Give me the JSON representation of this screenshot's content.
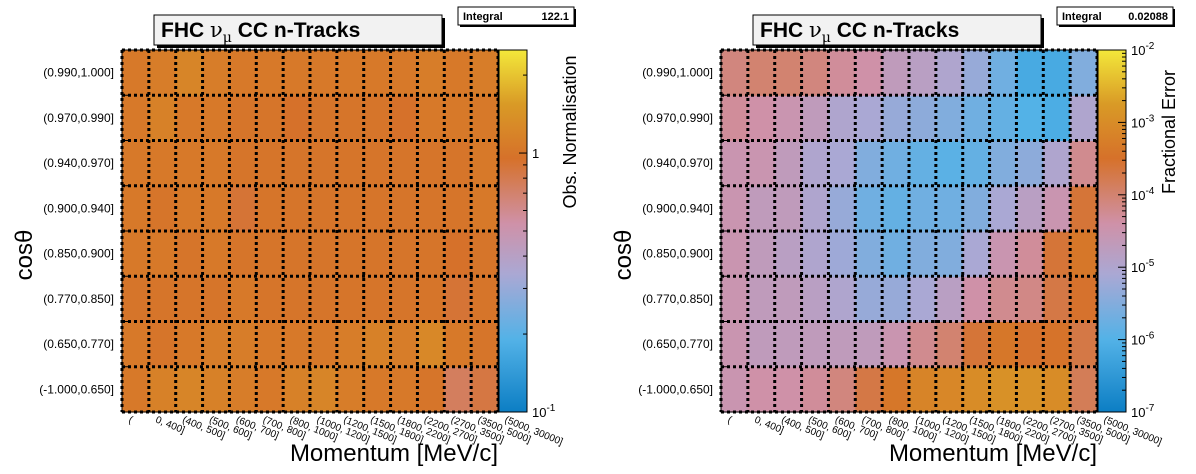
{
  "chart_data": [
    {
      "type": "heatmap",
      "title_prefix": "FHC ",
      "title_nu": "ν",
      "title_mu": "μ",
      "title_suffix": " CC n-Tracks",
      "stat_label": "Integral",
      "stat_value": "122.1",
      "xlabel": "Momentum [MeV/c]",
      "ylabel": "cosθ",
      "zlabel": "Obs. Normalisation",
      "zscale": "log",
      "zlim": [
        0.1,
        2.5
      ],
      "z_ticks": [
        {
          "value": 1,
          "label": "1"
        },
        {
          "value": 0.1,
          "label": "10^-1"
        }
      ],
      "y_bins": [
        "(-1.000,0.650]",
        "(0.650,0.770]",
        "(0.770,0.850]",
        "(0.850,0.900]",
        "(0.900,0.940]",
        "(0.940,0.970]",
        "(0.970,0.990]",
        "(0.990,1.000]"
      ],
      "x_bins": [
        "(0, 400]",
        "(400, 500]",
        "(500, 600]",
        "(600, 700]",
        "(700, 800]",
        "(800, 1000]",
        "(1000, 1200]",
        "(1200, 1500]",
        "(1500, 1800]",
        "(1800, 2200]",
        "(2200, 2700]",
        "(2700, 3500]",
        "(3500, 5000]",
        "(5000, 30000]"
      ],
      "x_edges": [
        0,
        400,
        500,
        600,
        700,
        800,
        1000,
        1200,
        1500,
        1800,
        2200,
        2700,
        3500,
        5000,
        30000
      ],
      "x_tick_labels": [
        "(",
        "0, 400]",
        "(400, 500]",
        "(500, 600]",
        "(600, 700]",
        "(700, 800]",
        "(800, 1000]",
        "(1000, 1200]",
        "(1200, 1500]",
        "(1500, 1800]",
        "(1800, 2200]",
        "(2200, 2700]",
        "(2700, 3500]",
        "(3500, 5000]",
        "(5000, 30000]"
      ],
      "values": [
        [
          1.05,
          1.15,
          1.2,
          1.15,
          1.1,
          1.05,
          1.15,
          1.2,
          1.1,
          1.05,
          1.05,
          1.0,
          0.75,
          0.85
        ],
        [
          1.05,
          1.0,
          1.05,
          1.1,
          1.1,
          1.05,
          1.05,
          1.05,
          1.1,
          1.15,
          1.1,
          1.25,
          1.05,
          1.0
        ],
        [
          1.0,
          1.0,
          1.0,
          1.0,
          1.05,
          1.0,
          1.0,
          1.0,
          1.0,
          1.0,
          1.0,
          1.0,
          0.9,
          1.0
        ],
        [
          1.05,
          1.05,
          1.0,
          1.05,
          1.0,
          1.0,
          1.0,
          1.0,
          1.0,
          1.0,
          1.0,
          1.0,
          0.95,
          1.0
        ],
        [
          1.05,
          1.0,
          1.05,
          1.05,
          0.9,
          1.0,
          1.0,
          1.0,
          1.0,
          1.0,
          1.0,
          1.0,
          1.0,
          1.05
        ],
        [
          1.05,
          1.05,
          1.05,
          1.05,
          1.0,
          1.0,
          1.0,
          1.0,
          1.0,
          1.0,
          1.0,
          1.0,
          1.0,
          1.05
        ],
        [
          1.05,
          1.15,
          1.05,
          1.05,
          1.0,
          1.0,
          0.95,
          1.0,
          1.0,
          1.0,
          0.95,
          1.05,
          1.05,
          1.05
        ],
        [
          1.05,
          1.1,
          1.2,
          1.1,
          1.05,
          1.05,
          1.05,
          1.05,
          1.05,
          1.05,
          1.05,
          1.1,
          1.05,
          1.1
        ]
      ]
    },
    {
      "type": "heatmap",
      "title_prefix": "FHC ",
      "title_nu": "ν",
      "title_mu": "μ",
      "title_suffix": " CC n-Tracks",
      "stat_label": "Integral",
      "stat_value": "0.02088",
      "xlabel": "Momentum [MeV/c]",
      "ylabel": "cosθ",
      "zlabel": "Fractional Error",
      "zscale": "log",
      "zlim": [
        1e-07,
        0.01
      ],
      "z_ticks": [
        {
          "value": 0.01,
          "label": "10^-2"
        },
        {
          "value": 0.001,
          "label": "10^-3"
        },
        {
          "value": 0.0001,
          "label": "10^-4"
        },
        {
          "value": 1e-05,
          "label": "10^-5"
        },
        {
          "value": 1e-06,
          "label": "10^-6"
        },
        {
          "value": 1e-07,
          "label": "10^-7"
        }
      ],
      "y_bins": [
        "(-1.000,0.650]",
        "(0.650,0.770]",
        "(0.770,0.850]",
        "(0.850,0.900]",
        "(0.900,0.940]",
        "(0.940,0.970]",
        "(0.970,0.990]",
        "(0.990,1.000]"
      ],
      "x_bins": [
        "(0, 400]",
        "(400, 500]",
        "(500, 600]",
        "(600, 700]",
        "(700, 800]",
        "(800, 1000]",
        "(1000, 1200]",
        "(1200, 1500]",
        "(1500, 1800]",
        "(1800, 2200]",
        "(2200, 2700]",
        "(2700, 3500]",
        "(3500, 5000]",
        "(5000, 30000]"
      ],
      "x_edges": [
        0,
        400,
        500,
        600,
        700,
        800,
        1000,
        1200,
        1500,
        1800,
        2200,
        2700,
        3500,
        5000,
        30000
      ],
      "x_tick_labels": [
        "(",
        "0, 400]",
        "(400, 500]",
        "(500, 600]",
        "(600, 700]",
        "(700, 800]",
        "(800, 1000]",
        "(1000, 1200]",
        "(1200, 1500]",
        "(1500, 1800]",
        "(1800, 2200]",
        "(2200, 2700]",
        "(2700, 3500]",
        "(3500, 5000]",
        "(5000, 30000]"
      ],
      "values": [
        [
          3e-05,
          4e-05,
          4e-05,
          5e-05,
          8e-05,
          0.0002,
          0.0004,
          0.0007,
          0.0008,
          0.001,
          0.0012,
          0.0012,
          0.001,
          0.00015
        ],
        [
          3e-05,
          2e-05,
          2e-05,
          2e-05,
          2e-05,
          2e-05,
          3e-05,
          6e-05,
          0.0001,
          0.00025,
          0.0004,
          0.0003,
          0.00035,
          0.0002
        ],
        [
          3e-05,
          2e-05,
          2e-05,
          1.5e-05,
          1e-05,
          5e-06,
          5e-06,
          8e-06,
          1.5e-05,
          4e-05,
          6e-05,
          7e-05,
          0.0002,
          0.0003
        ],
        [
          3e-05,
          2e-05,
          1.5e-05,
          1e-05,
          6e-06,
          3e-06,
          2e-06,
          3e-06,
          3e-06,
          8e-06,
          3e-05,
          5e-05,
          0.00025,
          0.0004
        ],
        [
          3e-05,
          2e-05,
          2e-05,
          1e-05,
          5e-06,
          2e-06,
          1.5e-06,
          2e-06,
          2e-06,
          3e-06,
          8e-06,
          1.5e-05,
          3e-05,
          0.00025
        ],
        [
          3e-05,
          3e-05,
          2e-05,
          1e-05,
          8e-06,
          3e-06,
          2e-06,
          1.5e-06,
          1.2e-06,
          1.5e-06,
          3e-06,
          4e-06,
          1e-05,
          6e-05
        ],
        [
          5e-05,
          4e-05,
          3e-05,
          2e-05,
          1e-05,
          8e-06,
          5e-06,
          4e-06,
          3e-06,
          2e-06,
          1.5e-06,
          1e-06,
          8e-07,
          1e-05
        ],
        [
          8e-05,
          0.0001,
          0.0001,
          8e-05,
          5e-05,
          4e-05,
          2e-05,
          1.5e-05,
          1e-05,
          5e-06,
          2e-06,
          7e-07,
          7e-07,
          3e-06
        ]
      ]
    }
  ]
}
